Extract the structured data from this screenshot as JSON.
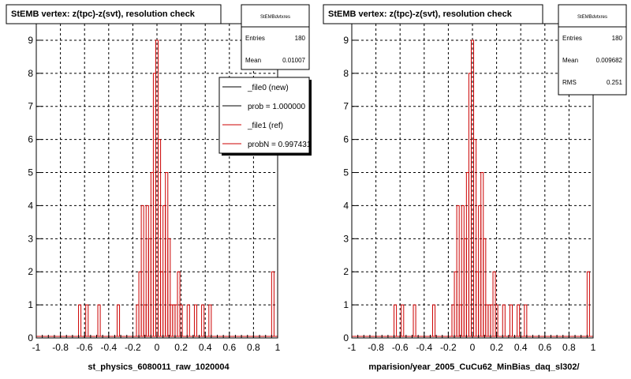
{
  "colors": {
    "hist": "#cc0000",
    "frame": "#000000",
    "grid": "#000000",
    "new_line": "#000000"
  },
  "chart_data": [
    {
      "type": "bar",
      "title": "StEMB  vertex: z(tpc)-z(svt), resolution check",
      "xlabel": "st_physics_6080011_raw_1020004",
      "ylabel": "",
      "xlim": [
        -1,
        1
      ],
      "ylim": [
        0,
        9.5
      ],
      "x_ticks": [
        "-1",
        "-0.8",
        "-0.6",
        "-0.4",
        "-0.2",
        "0",
        "0.2",
        "0.4",
        "0.6",
        "0.8",
        "1"
      ],
      "y_ticks": [
        "0",
        "1",
        "2",
        "3",
        "4",
        "5",
        "6",
        "7",
        "8",
        "9"
      ],
      "grid": true,
      "bin_width": 0.02,
      "bins": [
        {
          "x": -0.64,
          "y": 1
        },
        {
          "x": -0.58,
          "y": 1
        },
        {
          "x": -0.48,
          "y": 1
        },
        {
          "x": -0.32,
          "y": 1
        },
        {
          "x": -0.24,
          "y": 0
        },
        {
          "x": -0.16,
          "y": 1
        },
        {
          "x": -0.14,
          "y": 2
        },
        {
          "x": -0.12,
          "y": 4
        },
        {
          "x": -0.1,
          "y": 1
        },
        {
          "x": -0.08,
          "y": 4
        },
        {
          "x": -0.06,
          "y": 3
        },
        {
          "x": -0.04,
          "y": 5
        },
        {
          "x": -0.02,
          "y": 8
        },
        {
          "x": 0.0,
          "y": 9
        },
        {
          "x": 0.02,
          "y": 6
        },
        {
          "x": 0.04,
          "y": 2
        },
        {
          "x": 0.06,
          "y": 4
        },
        {
          "x": 0.08,
          "y": 5
        },
        {
          "x": 0.1,
          "y": 3
        },
        {
          "x": 0.12,
          "y": 1
        },
        {
          "x": 0.14,
          "y": 1
        },
        {
          "x": 0.16,
          "y": 1
        },
        {
          "x": 0.18,
          "y": 2
        },
        {
          "x": 0.2,
          "y": 1
        },
        {
          "x": 0.26,
          "y": 1
        },
        {
          "x": 0.32,
          "y": 1
        },
        {
          "x": 0.38,
          "y": 1
        },
        {
          "x": 0.44,
          "y": 1
        },
        {
          "x": 0.96,
          "y": 2
        }
      ],
      "stats": {
        "name": "StEMBdvtxres",
        "rows": [
          {
            "label": "Entries",
            "value": "180"
          },
          {
            "label": "Mean",
            "value": "0.01007"
          }
        ]
      },
      "legend": {
        "placement": "top-right",
        "entries": [
          {
            "label": "_file0 (new)",
            "color": "#000000"
          },
          {
            "label": "prob = 1.000000",
            "color": "#000000"
          },
          {
            "label": "_file1 (ref)",
            "color": "#cc0000"
          },
          {
            "label": "probN = 0.997431",
            "color": "#cc0000"
          }
        ]
      }
    },
    {
      "type": "bar",
      "title": "StEMB  vertex: z(tpc)-z(svt), resolution check",
      "xlabel": "mparision/year_2005_CuCu62_MinBias_daq_sl302/",
      "ylabel": "",
      "xlim": [
        -1,
        1
      ],
      "ylim": [
        0,
        9.5
      ],
      "x_ticks": [
        "-1",
        "-0.8",
        "-0.6",
        "-0.4",
        "-0.2",
        "0",
        "0.2",
        "0.4",
        "0.6",
        "0.8",
        "1"
      ],
      "y_ticks": [
        "0",
        "1",
        "2",
        "3",
        "4",
        "5",
        "6",
        "7",
        "8",
        "9"
      ],
      "grid": true,
      "bin_width": 0.02,
      "bins": [
        {
          "x": -0.64,
          "y": 1
        },
        {
          "x": -0.58,
          "y": 1
        },
        {
          "x": -0.48,
          "y": 1
        },
        {
          "x": -0.32,
          "y": 1
        },
        {
          "x": -0.24,
          "y": 0
        },
        {
          "x": -0.16,
          "y": 1
        },
        {
          "x": -0.14,
          "y": 2
        },
        {
          "x": -0.12,
          "y": 4
        },
        {
          "x": -0.1,
          "y": 1
        },
        {
          "x": -0.08,
          "y": 4
        },
        {
          "x": -0.06,
          "y": 3
        },
        {
          "x": -0.04,
          "y": 5
        },
        {
          "x": -0.02,
          "y": 8
        },
        {
          "x": 0.0,
          "y": 9
        },
        {
          "x": 0.02,
          "y": 6
        },
        {
          "x": 0.04,
          "y": 2
        },
        {
          "x": 0.06,
          "y": 4
        },
        {
          "x": 0.08,
          "y": 5
        },
        {
          "x": 0.1,
          "y": 3
        },
        {
          "x": 0.12,
          "y": 1
        },
        {
          "x": 0.14,
          "y": 1
        },
        {
          "x": 0.16,
          "y": 1
        },
        {
          "x": 0.18,
          "y": 2
        },
        {
          "x": 0.2,
          "y": 1
        },
        {
          "x": 0.26,
          "y": 1
        },
        {
          "x": 0.32,
          "y": 1
        },
        {
          "x": 0.38,
          "y": 1
        },
        {
          "x": 0.44,
          "y": 1
        },
        {
          "x": 0.96,
          "y": 2
        }
      ],
      "stats": {
        "name": "StEMBdvtxres",
        "rows": [
          {
            "label": "Entries",
            "value": "180"
          },
          {
            "label": "Mean",
            "value": "0.009682"
          },
          {
            "label": "RMS",
            "value": "0.251"
          }
        ]
      },
      "legend": null
    }
  ]
}
